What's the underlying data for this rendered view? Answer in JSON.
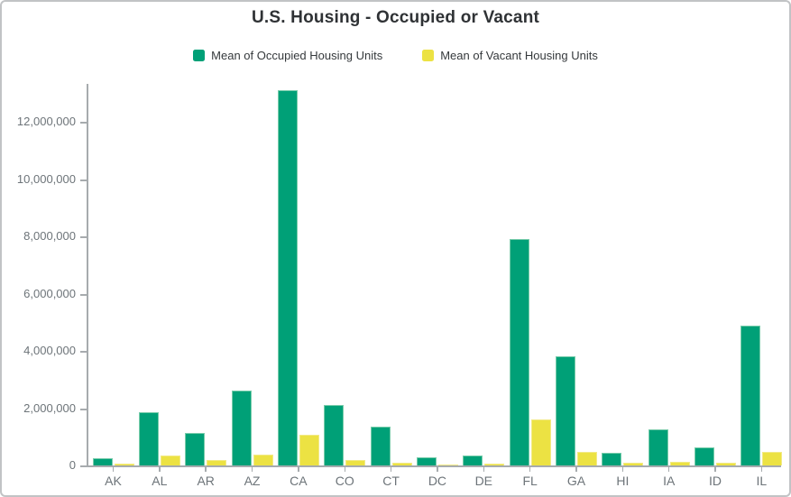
{
  "frame": {
    "background": "#ffffff",
    "border_color": "#c1c3c5"
  },
  "style": {
    "title_color": "#2f3235",
    "legend_text_color": "#35393c",
    "axis_line_color": "#a7abae",
    "tick_label_color": "#6d7479",
    "occupied_fill": "#00a077",
    "occupied_stroke": "#79ccab",
    "vacant_fill": "#ece243",
    "vacant_stroke": "#f2ea86"
  },
  "chart_data": {
    "type": "bar",
    "title": "U.S. Housing - Occupied or Vacant",
    "legend_position": "top",
    "grid": false,
    "xlabel": "",
    "ylabel": "",
    "categories": [
      "AK",
      "AL",
      "AR",
      "AZ",
      "CA",
      "CO",
      "CT",
      "DC",
      "DE",
      "FL",
      "GA",
      "HI",
      "IA",
      "ID",
      "IL"
    ],
    "series": [
      {
        "name": "Mean of Occupied Housing Units",
        "color": "#00a077",
        "values": [
          240000,
          1850000,
          1130000,
          2600000,
          13100000,
          2100000,
          1350000,
          270000,
          340000,
          7920000,
          3800000,
          430000,
          1250000,
          620000,
          4870000
        ]
      },
      {
        "name": "Mean of Vacant Housing Units",
        "color": "#ece243",
        "values": [
          60000,
          350000,
          180000,
          370000,
          1070000,
          200000,
          110000,
          35000,
          70000,
          1600000,
          460000,
          80000,
          120000,
          90000,
          460000
        ]
      }
    ],
    "ylim": [
      0,
      13300000
    ],
    "y_ticks": [
      0,
      2000000,
      4000000,
      6000000,
      8000000,
      10000000,
      12000000
    ]
  }
}
